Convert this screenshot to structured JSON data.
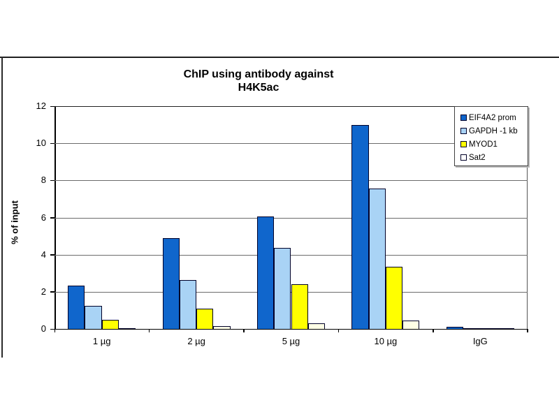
{
  "chart_data": {
    "type": "bar",
    "title": "ChIP using antibody against H4K5ac",
    "title_line1": "ChIP using antibody against",
    "title_line2": "H4K5ac",
    "ylabel": "% of input",
    "xlabel": "",
    "ylim": [
      0,
      12
    ],
    "ytick_step": 2,
    "ytick_labels": [
      "0",
      "2",
      "4",
      "6",
      "8",
      "10",
      "12"
    ],
    "grid": true,
    "legend_position": "top-right",
    "categories": [
      "1 µg",
      "2 µg",
      "5 µg",
      "10 µg",
      "IgG"
    ],
    "series": [
      {
        "name": "EIF4A2 prom",
        "color": "#1066CC",
        "values": [
          2.35,
          4.9,
          6.05,
          11.0,
          0.1
        ]
      },
      {
        "name": "GAPDH -1 kb",
        "color": "#A9D3F5",
        "values": [
          1.25,
          2.65,
          4.35,
          7.55,
          0.05
        ]
      },
      {
        "name": "MYOD1",
        "color": "#FFFF00",
        "values": [
          0.5,
          1.1,
          2.4,
          3.35,
          0.04
        ]
      },
      {
        "name": "Sat2",
        "color": "#FFFFE6",
        "values": [
          0.05,
          0.15,
          0.3,
          0.45,
          0.03
        ]
      }
    ],
    "colors": {
      "axis": "#000000",
      "gridline": "#6b6b6b",
      "bar_outline": "#000028",
      "background": "#ffffff"
    }
  }
}
